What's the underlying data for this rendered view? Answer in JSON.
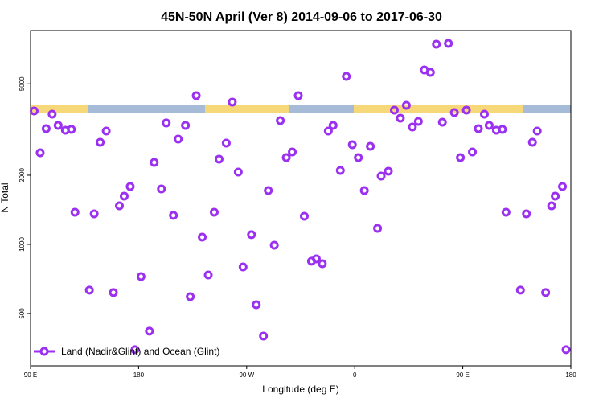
{
  "chart_data": {
    "type": "scatter",
    "title": "45N-50N April (Ver 8)   2014-09-06 to 2017-06-30",
    "x_label": "Longitude (deg E)",
    "y_label": "N Total",
    "log_y": true,
    "xlim": [
      90,
      540
    ],
    "xticks": [
      {
        "value": 90,
        "label": "90 E"
      },
      {
        "value": 180,
        "label": "180"
      },
      {
        "value": 270,
        "label": "90 W"
      },
      {
        "value": 360,
        "label": "0"
      },
      {
        "value": 450,
        "label": "90 E"
      },
      {
        "value": 540,
        "label": "180"
      }
    ],
    "ylim": [
      296,
      8530
    ],
    "yticks": [
      500,
      1000,
      2000,
      5000
    ],
    "legend": "bottom-left",
    "series": [
      {
        "name": "Land (Nadir&Glint) and Ocean (Glint)",
        "color": "#9b30f0",
        "x": [
          93,
          98,
          103,
          108,
          113,
          119,
          124,
          127,
          139,
          143,
          148,
          153,
          159,
          164,
          168,
          173,
          177,
          182,
          189,
          193,
          199,
          203,
          209,
          213,
          219,
          223,
          228,
          233,
          238,
          243,
          247,
          253,
          258,
          263,
          267,
          274,
          278,
          284,
          288,
          293,
          298,
          303,
          308,
          313,
          318,
          324,
          328,
          333,
          338,
          342,
          348,
          353,
          358,
          363,
          368,
          373,
          379,
          382,
          388,
          393,
          398,
          403,
          408,
          413,
          418,
          423,
          428,
          433,
          438,
          443,
          448,
          453,
          458,
          463,
          468,
          472,
          478,
          483,
          486,
          498,
          503,
          508,
          512,
          519,
          524,
          527,
          533,
          536
        ],
        "values": [
          3810,
          2506,
          3192,
          3690,
          3297,
          3141,
          3167,
          1380,
          632,
          1358,
          2782,
          3115,
          617,
          1472,
          1622,
          1786,
          348,
          724,
          419,
          2275,
          1744,
          3378,
          1337,
          2873,
          3297,
          592,
          4442,
          1075,
          736,
          1380,
          2350,
          2761,
          4165,
          2065,
          798,
          1102,
          546,
          399,
          1716,
          992,
          3459,
          2388,
          2526,
          4442,
          1326,
          845,
          865,
          824,
          3115,
          3297,
          2099,
          5390,
          2716,
          2388,
          1716,
          2673,
          1175,
          1984,
          2082,
          3841,
          3544,
          4032,
          3243,
          3431,
          5747,
          5610,
          7438,
          3404,
          7499,
          3750,
          2388,
          3841,
          2526,
          3192,
          3690,
          3297,
          3141,
          3167,
          1380,
          632,
          1358,
          2782,
          3115,
          617,
          1472,
          1622,
          1786,
          348
        ]
      }
    ]
  }
}
